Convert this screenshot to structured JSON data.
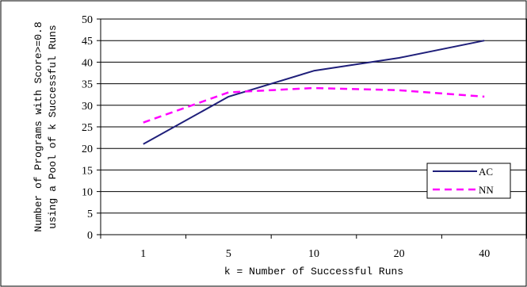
{
  "chart_data": {
    "type": "line",
    "categories": [
      "1",
      "5",
      "10",
      "20",
      "40"
    ],
    "series": [
      {
        "name": "AC",
        "values": [
          21,
          32,
          38,
          41,
          45
        ],
        "color": "#1f1f7a",
        "dash": "solid"
      },
      {
        "name": "NN",
        "values": [
          26,
          33,
          34,
          33.5,
          32
        ],
        "color": "#ff00ff",
        "dash": "dashed"
      }
    ],
    "xlabel": "k = Number of Successful Runs",
    "ylabel": [
      "Number of Programs with Score>=0.8",
      "using a Pool of k Successful Runs"
    ],
    "ylim": [
      0,
      50
    ],
    "yticks": [
      0,
      5,
      10,
      15,
      20,
      25,
      30,
      35,
      40,
      45,
      50
    ],
    "grid": "horizontal",
    "legend": "right"
  }
}
